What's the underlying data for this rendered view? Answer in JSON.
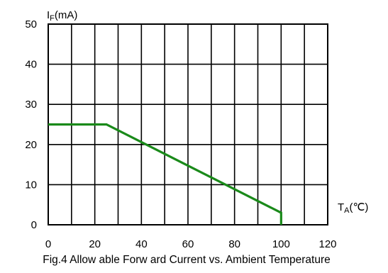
{
  "chart_data": {
    "type": "line",
    "title": "",
    "caption": "Fig.4 Allow able Forw ard Current vs. Ambient Temperature",
    "ylabel": "IF(mA)",
    "ylabel_main": "I",
    "ylabel_sub": "F",
    "ylabel_unit": "(mA)",
    "xlabel": "TA(℃)",
    "xlabel_main": "T",
    "xlabel_sub": "A",
    "xlabel_unit": "(℃)",
    "xlim": [
      0,
      120
    ],
    "ylim": [
      0,
      50
    ],
    "x_ticks": [
      0,
      10,
      20,
      30,
      40,
      50,
      60,
      70,
      80,
      90,
      100,
      110,
      120
    ],
    "x_tick_labels": [
      "0",
      "20",
      "40",
      "60",
      "80",
      "100",
      "120"
    ],
    "y_ticks": [
      0,
      10,
      20,
      30,
      40,
      50
    ],
    "y_tick_labels": [
      "0",
      "10",
      "20",
      "30",
      "40",
      "50"
    ],
    "grid": true,
    "line_color": "#1a8a1a",
    "series": [
      {
        "x": [
          0,
          25,
          100,
          100
        ],
        "y": [
          25,
          25,
          3,
          0
        ]
      }
    ]
  }
}
